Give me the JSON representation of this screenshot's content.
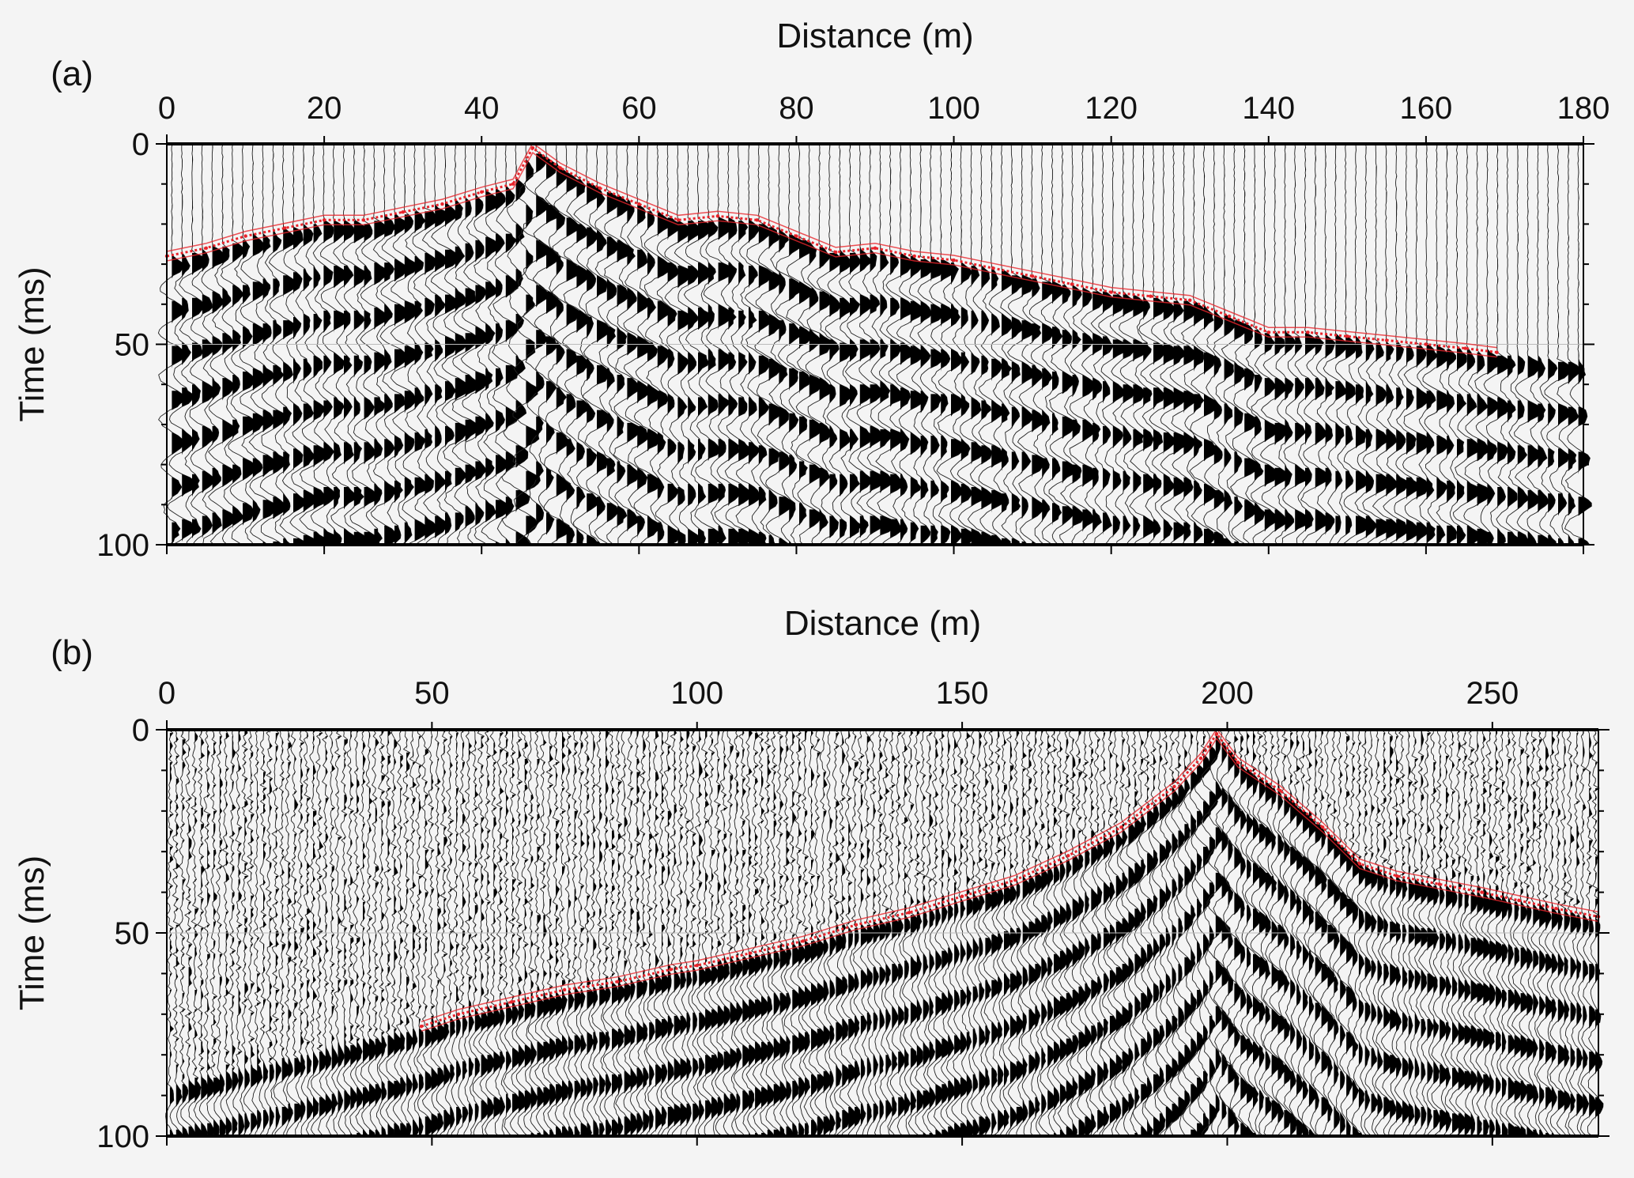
{
  "chart_data": [
    {
      "type": "line",
      "panel_label": "(a)",
      "title": "",
      "xlabel": "Distance (m)",
      "ylabel": "Time (ms)",
      "xlim": [
        0,
        180
      ],
      "ylim": [
        0,
        100
      ],
      "x_ticks": [
        "0",
        "20",
        "40",
        "60",
        "80",
        "100",
        "120",
        "140",
        "160",
        "180"
      ],
      "y_ticks": [
        "0",
        "50",
        "100"
      ],
      "y_inverted": true,
      "x_axis_position": "top",
      "grid": false,
      "background": "seismic wiggle traces (variable area)",
      "series": [
        {
          "name": "first-arrival picks",
          "color": "#e8242b",
          "x": [
            0,
            5,
            10,
            15,
            20,
            25,
            30,
            35,
            40,
            44,
            46.5,
            50,
            55,
            60,
            65,
            70,
            75,
            80,
            85,
            90,
            95,
            100,
            105,
            110,
            115,
            120,
            125,
            130,
            135,
            140,
            145,
            150,
            155,
            160,
            165,
            169
          ],
          "y": [
            28,
            26,
            23,
            21,
            19,
            19,
            17,
            15,
            12,
            10,
            1,
            6,
            11,
            15,
            19,
            18,
            19,
            23,
            27,
            26,
            28,
            29,
            31,
            33,
            35,
            37,
            38,
            39,
            43,
            47,
            47,
            48,
            49,
            50,
            51,
            52
          ]
        }
      ]
    },
    {
      "type": "line",
      "panel_label": "(b)",
      "title": "",
      "xlabel": "Distance (m)",
      "ylabel": "Time (ms)",
      "xlim": [
        0,
        270
      ],
      "ylim": [
        0,
        100
      ],
      "x_ticks": [
        "0",
        "50",
        "100",
        "150",
        "200",
        "250"
      ],
      "y_ticks": [
        "0",
        "50",
        "100"
      ],
      "y_inverted": true,
      "x_axis_position": "top",
      "grid": false,
      "background": "seismic wiggle traces (variable area)",
      "series": [
        {
          "name": "first-arrival picks",
          "color": "#e8242b",
          "x": [
            48,
            55,
            65,
            75,
            85,
            95,
            100,
            110,
            120,
            130,
            140,
            150,
            160,
            170,
            180,
            185,
            190,
            195,
            198,
            202,
            210,
            218,
            225,
            232,
            240,
            248,
            255,
            262,
            270
          ],
          "y": [
            73,
            70,
            67,
            64,
            62,
            59,
            58,
            55,
            52,
            48,
            45,
            41,
            37,
            31,
            24,
            19,
            14,
            7,
            1,
            8,
            15,
            24,
            33,
            36,
            38,
            40,
            42,
            44,
            46
          ]
        }
      ]
    }
  ]
}
